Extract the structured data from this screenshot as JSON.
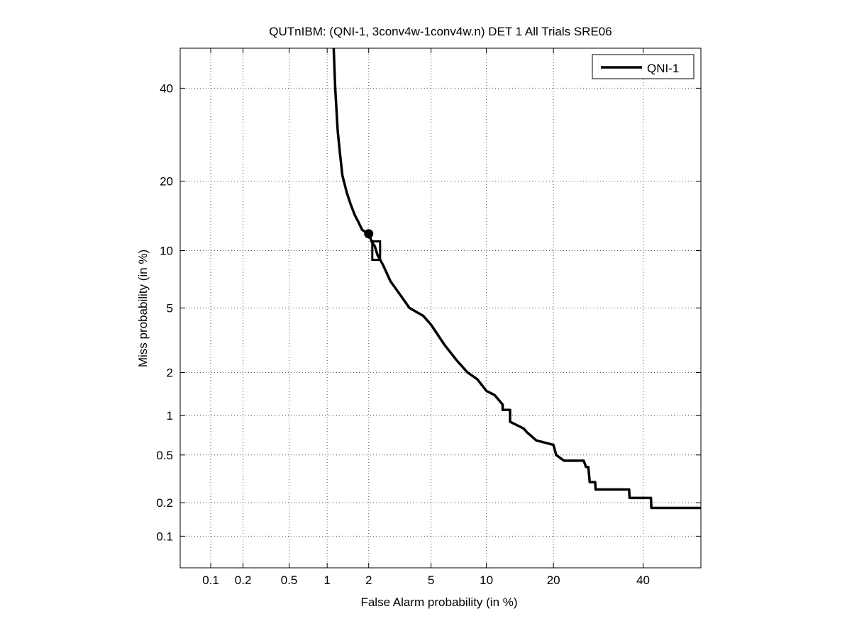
{
  "chart_data": {
    "type": "line",
    "title": "QUTnIBM: (QNI-1, 3conv4w-1conv4w.n) DET 1 All Trials SRE06",
    "xlabel": "False Alarm probability (in %)",
    "ylabel": "Miss probability (in %)",
    "scale": "normal-deviate (DET)",
    "xlim": [
      0.05,
      55
    ],
    "ylim": [
      0.05,
      50
    ],
    "xticks": [
      0.1,
      0.2,
      0.5,
      1,
      2,
      5,
      10,
      20,
      40
    ],
    "xtick_labels": [
      "0.1",
      "0.2",
      "0.5",
      "1",
      "2",
      "5",
      "10",
      "20",
      "40"
    ],
    "yticks": [
      0.1,
      0.2,
      0.5,
      1,
      2,
      5,
      10,
      20,
      40
    ],
    "ytick_labels": [
      "0.1",
      "0.2",
      "0.5",
      "1",
      "2",
      "5",
      "10",
      "20",
      "40"
    ],
    "grid": true,
    "legend_position": "top-right",
    "series": [
      {
        "name": "QNI-1",
        "color": "#000000",
        "x": [
          1.12,
          1.15,
          1.2,
          1.25,
          1.3,
          1.4,
          1.5,
          1.6,
          1.7,
          1.8,
          2.0,
          2.1,
          2.2,
          2.3,
          2.5,
          2.8,
          3.2,
          3.7,
          4.5,
          5.0,
          6.0,
          7.0,
          8.0,
          9.0,
          10.0,
          11.0,
          12.0,
          12.0,
          13.0,
          13.0,
          15.0,
          15.5,
          17.0,
          20.0,
          20.5,
          22.0,
          26.0,
          26.5,
          27.0,
          27.3,
          28.5,
          28.6,
          36.5,
          36.6,
          42.0,
          42.1,
          55.0
        ],
        "y": [
          50,
          40,
          30,
          25,
          21,
          18,
          16,
          14.5,
          13.5,
          12.5,
          12.0,
          11.0,
          10.5,
          9.5,
          8.5,
          7.0,
          6.0,
          5.0,
          4.5,
          4.0,
          3.0,
          2.4,
          2.0,
          1.8,
          1.5,
          1.4,
          1.2,
          1.1,
          1.1,
          0.9,
          0.8,
          0.75,
          0.65,
          0.6,
          0.5,
          0.45,
          0.45,
          0.4,
          0.4,
          0.3,
          0.3,
          0.26,
          0.26,
          0.22,
          0.22,
          0.18,
          0.18
        ]
      }
    ],
    "markers": [
      {
        "shape": "circle",
        "x": 2.0,
        "y": 12.0
      },
      {
        "shape": "square",
        "x": 2.25,
        "y": 10.0
      }
    ]
  }
}
